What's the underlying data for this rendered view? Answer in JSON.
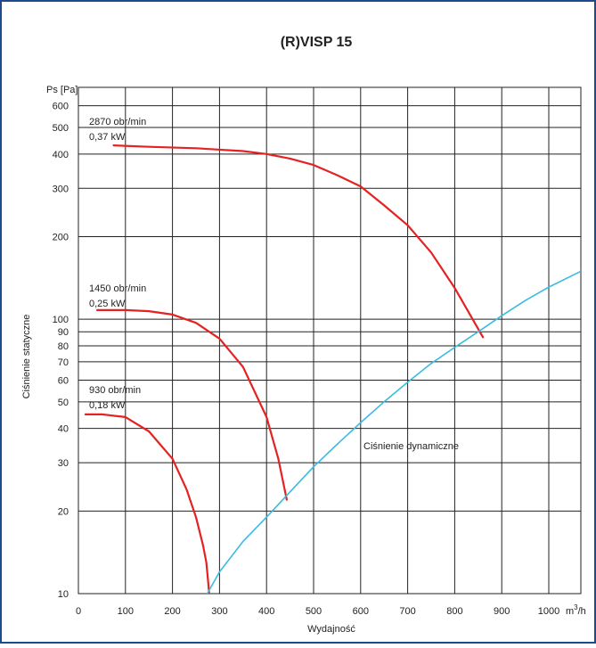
{
  "chart_data": {
    "type": "line",
    "title": "(R)VISP 15",
    "ylabel_short": "Ps [Pa]",
    "ylabel": "Ciśnienie statyczne",
    "xlabel": "Wydajność",
    "x_unit_label": "m3/h",
    "x_unit_base": "m",
    "x_unit_sup": "3",
    "x_unit_tail": "/h",
    "yscale": "log",
    "xlim": [
      0,
      1000
    ],
    "ylim": [
      10,
      700
    ],
    "x_ticks": [
      0,
      100,
      200,
      300,
      400,
      500,
      600,
      700,
      800,
      900,
      1000
    ],
    "x_tick_labels": [
      "0",
      "100",
      "200",
      "300",
      "400",
      "500",
      "600",
      "700",
      "800",
      "900",
      "1000"
    ],
    "y_ticks": [
      10,
      20,
      30,
      40,
      50,
      60,
      70,
      80,
      90,
      100,
      200,
      300,
      400,
      500,
      600
    ],
    "y_tick_labels": [
      "10",
      "20",
      "30",
      "40",
      "50",
      "60",
      "70",
      "80",
      "90",
      "100",
      "200",
      "300",
      "400",
      "500",
      "600"
    ],
    "grid": true,
    "series": [
      {
        "name": "",
        "label_line1": "2870 obr/min",
        "label_line2": "0,37 kW",
        "color": "#e52222",
        "x": [
          75,
          150,
          250,
          350,
          400,
          450,
          500,
          550,
          600,
          650,
          700,
          750,
          800,
          860
        ],
        "y": [
          430,
          425,
          420,
          410,
          400,
          385,
          365,
          335,
          305,
          260,
          220,
          175,
          130,
          86
        ]
      },
      {
        "name": "",
        "label_line1": "1450 obr/min",
        "label_line2": "0,25 kW",
        "color": "#e52222",
        "x": [
          40,
          100,
          150,
          200,
          250,
          300,
          350,
          400,
          425,
          443
        ],
        "y": [
          108,
          108,
          107,
          104,
          97,
          85,
          67,
          44,
          31,
          22
        ]
      },
      {
        "name": "",
        "label_line1": "930 obr/min",
        "label_line2": "0,18 kW",
        "color": "#e52222",
        "x": [
          15,
          50,
          100,
          150,
          200,
          230,
          250,
          265,
          272,
          276,
          278
        ],
        "y": [
          45,
          45,
          44,
          39,
          31,
          24,
          19,
          15,
          13,
          11,
          10
        ]
      },
      {
        "name": "Ciśnienie dynamiczne",
        "label_line1": "Ciśnienie dynamiczne",
        "label_line2": "",
        "color": "#3bbcdf",
        "x": [
          274,
          300,
          350,
          400,
          450,
          500,
          550,
          600,
          650,
          700,
          750,
          800,
          850,
          900,
          950,
          1000,
          1070
        ],
        "y": [
          10,
          12,
          15.5,
          19,
          23.5,
          29,
          35,
          42,
          50,
          59,
          69,
          79,
          90,
          103,
          117,
          131,
          150
        ]
      }
    ]
  }
}
